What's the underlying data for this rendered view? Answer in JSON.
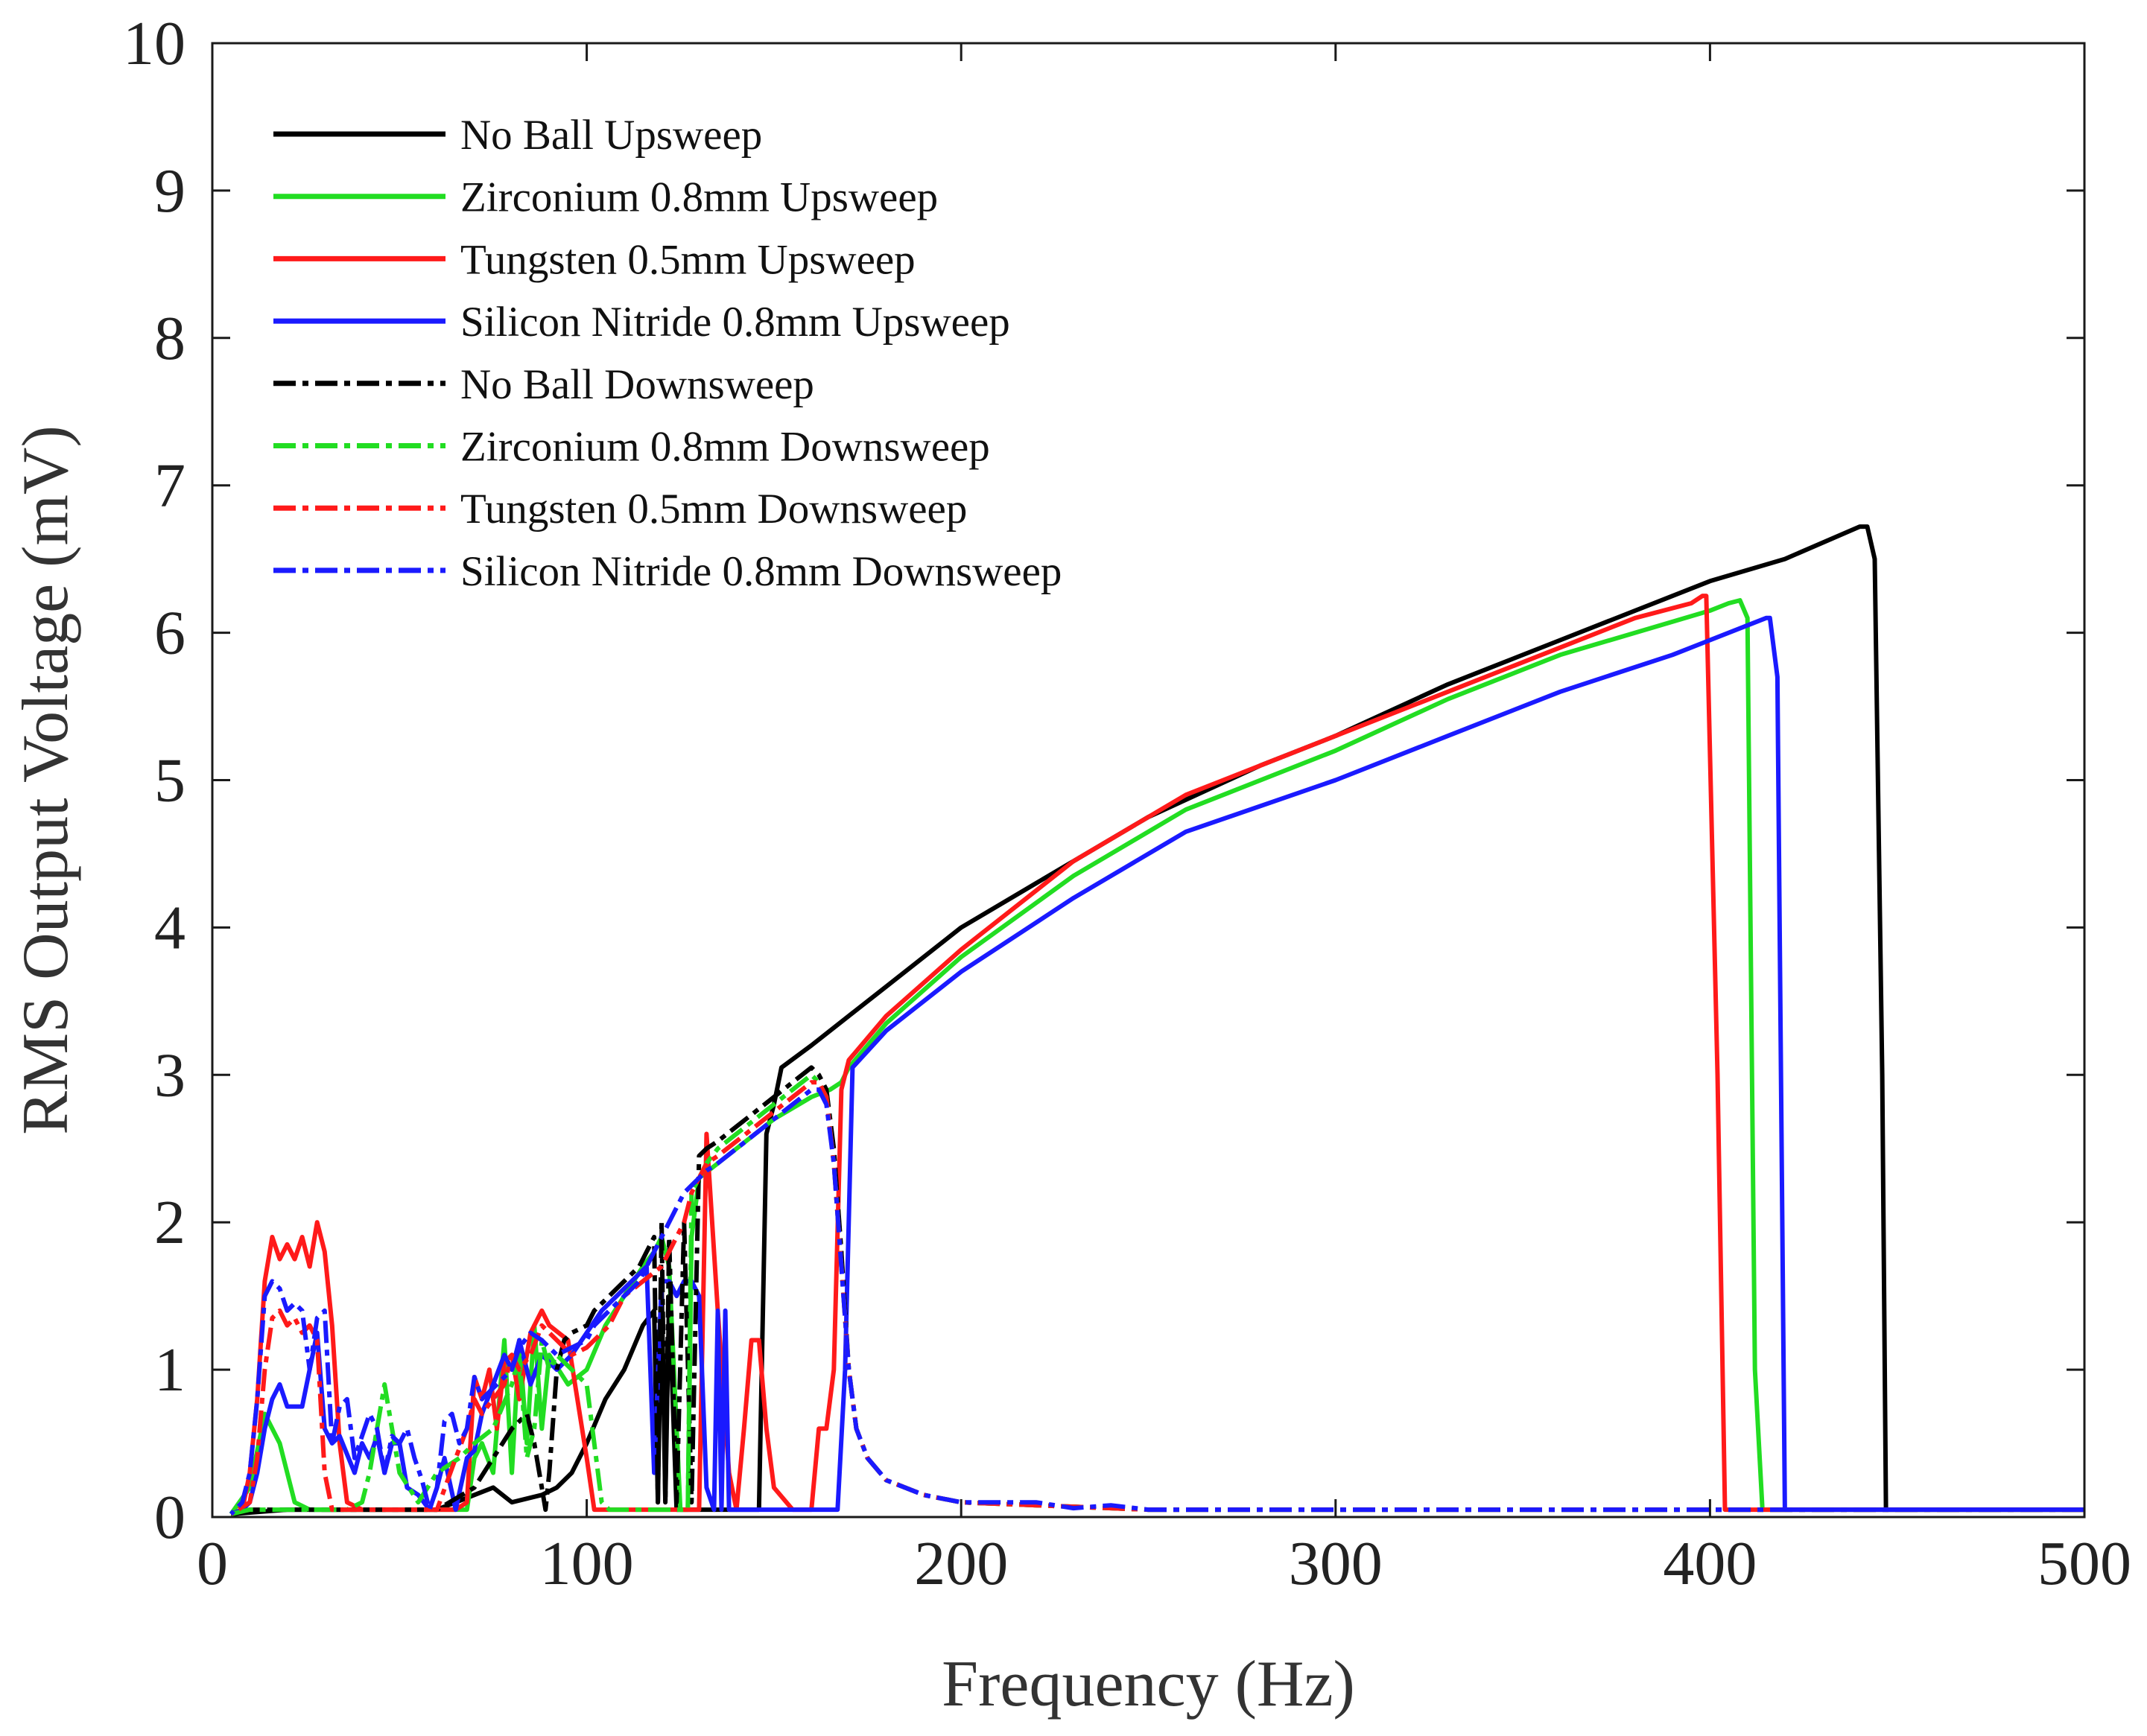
{
  "chart_data": {
    "type": "line",
    "title": "",
    "xlabel": "Frequency (Hz)",
    "ylabel": "RMS Output Voltage (mV)",
    "xlim": [
      0,
      500
    ],
    "ylim": [
      0,
      10
    ],
    "xticks": [
      0,
      100,
      200,
      300,
      400,
      500
    ],
    "yticks": [
      0,
      1,
      2,
      3,
      4,
      5,
      6,
      7,
      8,
      9,
      10
    ],
    "grid": false,
    "legend_position": "top-left",
    "series": [
      {
        "name": "No Ball Upsweep",
        "color": "#000000",
        "dash": "solid",
        "x": [
          5,
          20,
          40,
          60,
          70,
          75,
          80,
          88,
          92,
          96,
          100,
          105,
          110,
          115,
          118,
          119,
          120,
          121,
          122,
          124,
          126,
          128,
          130,
          140,
          146,
          148,
          150,
          152,
          160,
          170,
          180,
          200,
          220,
          250,
          280,
          300,
          330,
          360,
          400,
          420,
          440,
          442,
          444,
          446,
          447,
          460,
          480,
          500
        ],
        "y": [
          0.02,
          0.05,
          0.05,
          0.05,
          0.15,
          0.2,
          0.1,
          0.15,
          0.2,
          0.3,
          0.5,
          0.8,
          1.0,
          1.3,
          1.4,
          0.1,
          1.6,
          0.1,
          1.5,
          0.05,
          0.05,
          0.05,
          0.05,
          0.05,
          0.05,
          2.6,
          2.8,
          3.05,
          3.2,
          3.4,
          3.6,
          4.0,
          4.3,
          4.75,
          5.1,
          5.3,
          5.65,
          5.95,
          6.35,
          6.5,
          6.72,
          6.72,
          6.5,
          3.0,
          0.05,
          0.05,
          0.05,
          0.05
        ]
      },
      {
        "name": "Zirconium 0.8mm Upsweep",
        "color": "#22dd22",
        "dash": "solid",
        "x": [
          5,
          10,
          14,
          18,
          22,
          26,
          30,
          40,
          60,
          68,
          70,
          72,
          75,
          78,
          80,
          82,
          84,
          86,
          88,
          90,
          95,
          100,
          105,
          110,
          115,
          118,
          120,
          122,
          125,
          126,
          127,
          128,
          130,
          140,
          150,
          160,
          165,
          168,
          170,
          180,
          200,
          230,
          260,
          300,
          330,
          360,
          380,
          400,
          405,
          408,
          410,
          412,
          414,
          430,
          460,
          500
        ],
        "y": [
          0.02,
          0.2,
          0.7,
          0.5,
          0.1,
          0.05,
          0.05,
          0.05,
          0.05,
          0.05,
          0.4,
          0.5,
          0.3,
          1.2,
          0.3,
          1.2,
          0.5,
          1.3,
          0.6,
          1.1,
          0.9,
          1.0,
          1.3,
          1.5,
          1.7,
          1.8,
          1.9,
          1.7,
          0.05,
          0.05,
          0.05,
          1.9,
          2.3,
          2.5,
          2.7,
          2.85,
          2.9,
          2.95,
          3.05,
          3.35,
          3.8,
          4.35,
          4.8,
          5.2,
          5.55,
          5.85,
          6.0,
          6.15,
          6.2,
          6.22,
          6.1,
          1.0,
          0.05,
          0.05,
          0.05,
          0.05
        ]
      },
      {
        "name": "Tungsten 0.5mm Upsweep",
        "color": "#ff1a1a",
        "dash": "solid",
        "x": [
          5,
          8,
          10,
          12,
          14,
          16,
          18,
          20,
          22,
          24,
          26,
          28,
          30,
          32,
          34,
          36,
          40,
          50,
          60,
          65,
          68,
          70,
          72,
          74,
          76,
          78,
          80,
          82,
          85,
          88,
          90,
          95,
          100,
          102,
          104,
          106,
          110,
          120,
          125,
          128,
          130,
          132,
          135,
          138,
          140,
          142,
          144,
          146,
          148,
          150,
          155,
          160,
          162,
          164,
          166,
          168,
          170,
          180,
          200,
          230,
          260,
          300,
          330,
          360,
          380,
          395,
          398,
          399,
          402,
          404,
          410,
          440,
          470,
          500
        ],
        "y": [
          0.02,
          0.05,
          0.3,
          0.8,
          1.6,
          1.9,
          1.75,
          1.85,
          1.75,
          1.9,
          1.7,
          2.0,
          1.8,
          1.3,
          0.5,
          0.1,
          0.05,
          0.05,
          0.05,
          0.05,
          0.1,
          0.95,
          0.8,
          1.0,
          0.6,
          1.05,
          1.1,
          0.8,
          1.25,
          1.4,
          1.3,
          1.2,
          0.4,
          0.05,
          0.05,
          0.05,
          0.05,
          0.05,
          0.05,
          0.05,
          0.05,
          2.6,
          1.4,
          0.3,
          0.05,
          0.6,
          1.2,
          1.2,
          0.6,
          0.2,
          0.05,
          0.05,
          0.6,
          0.6,
          1.0,
          2.9,
          3.1,
          3.4,
          3.85,
          4.45,
          4.9,
          5.3,
          5.6,
          5.9,
          6.1,
          6.2,
          6.25,
          6.25,
          3.0,
          0.05,
          0.05,
          0.05,
          0.05,
          0.05
        ]
      },
      {
        "name": "Silicon Nitride 0.8mm Upsweep",
        "color": "#1a1aff",
        "dash": "solid",
        "x": [
          5,
          8,
          10,
          12,
          14,
          16,
          18,
          20,
          24,
          28,
          30,
          32,
          34,
          38,
          40,
          42,
          44,
          46,
          48,
          50,
          52,
          55,
          58,
          60,
          62,
          65,
          68,
          70,
          72,
          75,
          78,
          80,
          82,
          85,
          88,
          92,
          96,
          100,
          104,
          108,
          112,
          116,
          118,
          120,
          122,
          124,
          126,
          128,
          130,
          132,
          134,
          135,
          136,
          137,
          138,
          140,
          142,
          150,
          160,
          165,
          167,
          169,
          171,
          180,
          200,
          230,
          260,
          300,
          330,
          360,
          390,
          410,
          415,
          416,
          418,
          420,
          440,
          470,
          500
        ],
        "y": [
          0.02,
          0.05,
          0.1,
          0.3,
          0.6,
          0.8,
          0.9,
          0.75,
          0.75,
          1.25,
          0.6,
          0.5,
          0.55,
          0.3,
          0.5,
          0.4,
          0.55,
          0.3,
          0.5,
          0.5,
          0.2,
          0.15,
          0.05,
          0.2,
          0.4,
          0.05,
          0.4,
          0.45,
          0.7,
          0.9,
          1.1,
          1.0,
          1.2,
          0.9,
          1.1,
          1.0,
          1.1,
          1.25,
          1.4,
          1.5,
          1.6,
          1.7,
          0.3,
          1.6,
          1.6,
          1.5,
          1.6,
          1.6,
          1.5,
          0.2,
          0.05,
          1.4,
          0.05,
          1.4,
          0.05,
          0.05,
          0.05,
          0.05,
          0.05,
          0.05,
          0.05,
          1.0,
          3.05,
          3.3,
          3.7,
          4.2,
          4.65,
          5.0,
          5.3,
          5.6,
          5.85,
          6.05,
          6.1,
          6.1,
          5.7,
          0.05,
          0.05,
          0.05,
          0.05
        ]
      },
      {
        "name": "No Ball Downsweep",
        "color": "#000000",
        "dash": "dashdot",
        "x": [
          500,
          400,
          300,
          250,
          200,
          190,
          180,
          175,
          172,
          170,
          168,
          166,
          164,
          162,
          160,
          155,
          150,
          145,
          140,
          135,
          132,
          130,
          128,
          126,
          124,
          122,
          121,
          120,
          119,
          118,
          116,
          114,
          110,
          106,
          102,
          100,
          96,
          94,
          92,
          90,
          89,
          88,
          86,
          84,
          80,
          75,
          70,
          60,
          50,
          40,
          30,
          20,
          10,
          5
        ],
        "y": [
          0.05,
          0.05,
          0.05,
          0.05,
          0.1,
          0.15,
          0.25,
          0.4,
          0.6,
          1.0,
          1.8,
          2.5,
          2.9,
          3.0,
          3.05,
          2.95,
          2.85,
          2.75,
          2.65,
          2.55,
          2.5,
          2.45,
          0.1,
          2.0,
          0.1,
          1.9,
          0.1,
          2.0,
          0.1,
          1.9,
          1.8,
          1.7,
          1.6,
          1.5,
          1.4,
          1.3,
          1.25,
          1.2,
          1.0,
          0.3,
          0.05,
          0.2,
          0.5,
          0.7,
          0.6,
          0.4,
          0.2,
          0.05,
          0.05,
          0.05,
          0.05,
          0.05,
          0.05,
          0.02
        ]
      },
      {
        "name": "Zirconium 0.8mm Downsweep",
        "color": "#22dd22",
        "dash": "dashdot",
        "x": [
          500,
          400,
          300,
          250,
          200,
          190,
          180,
          175,
          172,
          170,
          168,
          166,
          164,
          162,
          160,
          155,
          150,
          145,
          140,
          135,
          132,
          130,
          128,
          127,
          126,
          125,
          122,
          118,
          114,
          110,
          106,
          104,
          102,
          100,
          96,
          92,
          90,
          88,
          86,
          84,
          82,
          80,
          75,
          70,
          66,
          60,
          55,
          50,
          48,
          46,
          44,
          42,
          40,
          36,
          30,
          20,
          10,
          5
        ],
        "y": [
          0.05,
          0.05,
          0.05,
          0.05,
          0.1,
          0.15,
          0.25,
          0.4,
          0.6,
          1.0,
          1.7,
          2.4,
          2.85,
          2.95,
          3.0,
          2.9,
          2.8,
          2.7,
          2.6,
          2.5,
          2.4,
          2.3,
          2.2,
          0.05,
          0.05,
          0.05,
          0.05,
          0.05,
          0.05,
          0.05,
          0.05,
          0.1,
          0.5,
          0.9,
          1.0,
          1.1,
          1.0,
          1.2,
          0.6,
          0.4,
          1.1,
          0.9,
          0.6,
          0.5,
          0.4,
          0.3,
          0.1,
          0.3,
          0.6,
          0.9,
          0.6,
          0.3,
          0.1,
          0.05,
          0.05,
          0.05,
          0.05,
          0.02
        ]
      },
      {
        "name": "Tungsten 0.5mm Downsweep",
        "color": "#ff1a1a",
        "dash": "dashdot",
        "x": [
          500,
          400,
          300,
          250,
          200,
          190,
          180,
          175,
          172,
          170,
          168,
          166,
          164,
          162,
          160,
          155,
          150,
          145,
          140,
          135,
          132,
          130,
          128,
          126,
          124,
          122,
          120,
          115,
          110,
          106,
          104,
          102,
          100,
          96,
          92,
          88,
          85,
          82,
          80,
          78,
          75,
          72,
          70,
          68,
          65,
          60,
          50,
          40,
          34,
          32,
          30,
          28,
          26,
          24,
          22,
          20,
          18,
          16,
          14,
          12,
          10,
          5
        ],
        "y": [
          0.05,
          0.05,
          0.05,
          0.05,
          0.1,
          0.15,
          0.25,
          0.4,
          0.6,
          1.0,
          1.7,
          2.4,
          2.85,
          2.95,
          2.95,
          2.85,
          2.75,
          2.65,
          2.55,
          2.45,
          2.4,
          2.3,
          2.2,
          2.0,
          1.9,
          1.8,
          1.7,
          1.6,
          1.5,
          1.3,
          1.25,
          1.2,
          1.15,
          1.1,
          1.2,
          1.3,
          1.1,
          1.0,
          1.1,
          0.9,
          0.8,
          0.7,
          0.8,
          0.6,
          0.4,
          0.05,
          0.05,
          0.05,
          0.05,
          0.05,
          0.3,
          1.2,
          1.3,
          1.25,
          1.35,
          1.3,
          1.4,
          1.35,
          1.0,
          0.4,
          0.1,
          0.02
        ]
      },
      {
        "name": "Silicon Nitride 0.8mm Downsweep",
        "color": "#1a1aff",
        "dash": "dashdot",
        "x": [
          500,
          400,
          300,
          250,
          240,
          230,
          220,
          200,
          190,
          180,
          175,
          172,
          170,
          168,
          166,
          164,
          162,
          160,
          155,
          150,
          145,
          140,
          135,
          132,
          130,
          128,
          126,
          124,
          122,
          120,
          118,
          116,
          114,
          110,
          106,
          102,
          100,
          96,
          92,
          88,
          85,
          82,
          80,
          76,
          72,
          70,
          68,
          66,
          64,
          62,
          60,
          58,
          56,
          54,
          52,
          50,
          48,
          46,
          44,
          42,
          40,
          38,
          36,
          34,
          32,
          30,
          28,
          26,
          24,
          22,
          20,
          18,
          16,
          14,
          12,
          10,
          8,
          5
        ],
        "y": [
          0.05,
          0.05,
          0.05,
          0.05,
          0.08,
          0.06,
          0.1,
          0.1,
          0.15,
          0.25,
          0.4,
          0.6,
          1.0,
          1.7,
          2.4,
          2.8,
          2.9,
          2.9,
          2.8,
          2.7,
          2.6,
          2.5,
          2.4,
          2.35,
          2.3,
          2.25,
          2.2,
          2.1,
          2.0,
          1.9,
          1.8,
          1.7,
          1.6,
          1.5,
          1.4,
          1.3,
          1.2,
          1.15,
          1.1,
          1.2,
          1.25,
          1.15,
          1.0,
          0.9,
          0.8,
          0.95,
          0.6,
          0.5,
          0.7,
          0.65,
          0.2,
          0.05,
          0.25,
          0.4,
          0.6,
          0.5,
          0.55,
          0.3,
          0.6,
          0.7,
          0.55,
          0.4,
          0.8,
          0.75,
          0.5,
          1.4,
          1.35,
          1.0,
          1.4,
          1.45,
          1.4,
          1.55,
          1.6,
          1.5,
          0.8,
          0.3,
          0.1,
          0.02
        ]
      }
    ]
  }
}
